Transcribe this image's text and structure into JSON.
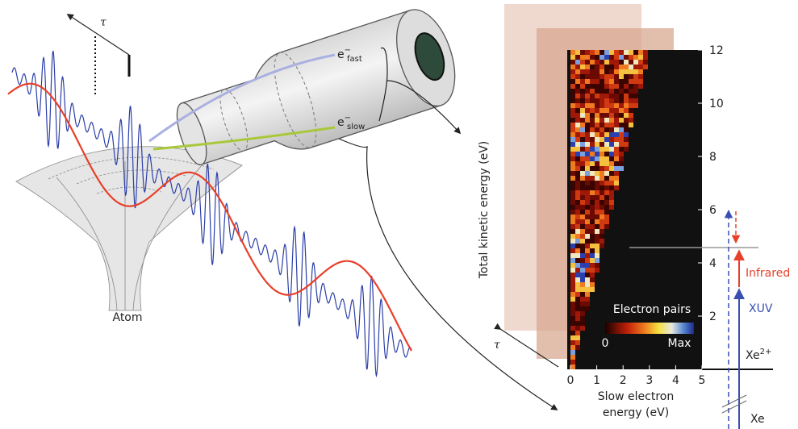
{
  "labels": {
    "tau_top": "τ",
    "e_fast": {
      "symbol": "e",
      "charge": "−",
      "subscript": "fast"
    },
    "e_slow": {
      "symbol": "e",
      "charge": "−",
      "subscript": "slow"
    },
    "atom": "Atom",
    "tau_bottom": "τ"
  },
  "heatmap": {
    "ylabel": "Total kinetic energy (eV)",
    "ylim": [
      0,
      12
    ],
    "yticks": [
      2,
      4,
      6,
      8,
      10,
      12
    ],
    "xlabel": [
      "Slow electron",
      "energy (eV)"
    ],
    "xlim": [
      0,
      5
    ],
    "xticks": [
      0,
      1,
      2,
      3,
      4,
      5
    ],
    "colorbar": {
      "title": "Electron pairs",
      "min_label": "0",
      "max_label": "Max"
    }
  },
  "levels": {
    "infrared": "Infrared",
    "xuv": "XUV",
    "xe2plus": {
      "base": "Xe",
      "sup": "2+"
    },
    "xe": "Xe"
  }
}
